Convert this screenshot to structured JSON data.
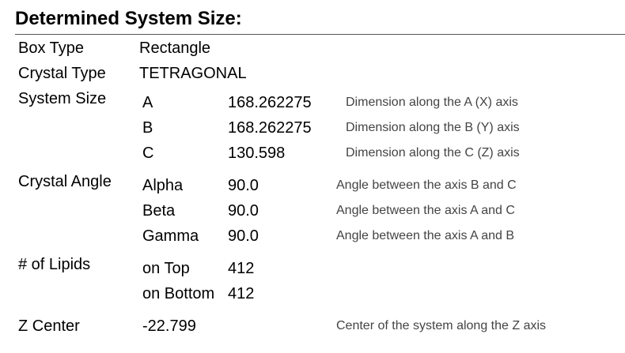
{
  "header": {
    "title": "Determined System Size:"
  },
  "box_type": {
    "label": "Box Type",
    "value": "Rectangle"
  },
  "crystal_type": {
    "label": "Crystal Type",
    "value": "TETRAGONAL"
  },
  "system_size": {
    "label": "System Size",
    "rows": [
      {
        "name": "A",
        "value": "168.262275",
        "description": "Dimension along the A (X) axis"
      },
      {
        "name": "B",
        "value": "168.262275",
        "description": "Dimension along the B (Y) axis"
      },
      {
        "name": "C",
        "value": "130.598",
        "description": "Dimension along the C (Z) axis"
      }
    ]
  },
  "crystal_angle": {
    "label": "Crystal Angle",
    "rows": [
      {
        "name": "Alpha",
        "value": "90.0",
        "description": "Angle between the axis B and C"
      },
      {
        "name": "Beta",
        "value": "90.0",
        "description": "Angle between the axis A and C"
      },
      {
        "name": "Gamma",
        "value": "90.0",
        "description": "Angle between the axis A and B"
      }
    ]
  },
  "lipids": {
    "label": "# of Lipids",
    "rows": [
      {
        "name": "on Top",
        "value": "412"
      },
      {
        "name": "on Bottom",
        "value": "412"
      }
    ]
  },
  "z_center": {
    "label": "Z Center",
    "value": "-22.799",
    "description": "Center of the system along the Z axis"
  }
}
